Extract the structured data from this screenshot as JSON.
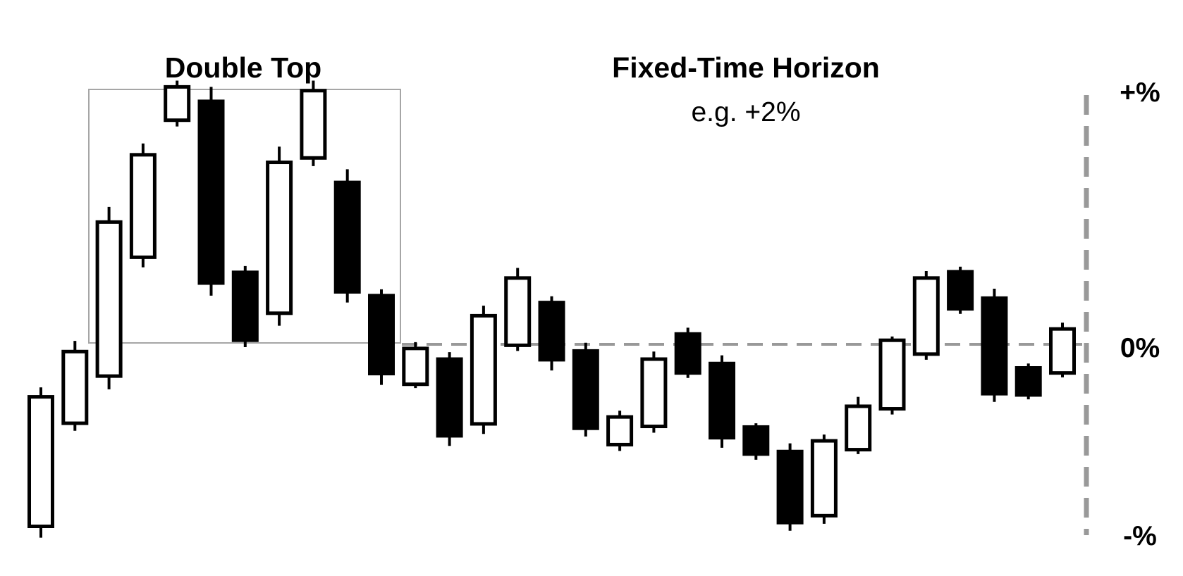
{
  "chart_data": {
    "type": "candlestick",
    "annotations": {
      "pattern_label": "Double Top",
      "horizon_title": "Fixed-Time Horizon",
      "horizon_subtitle": "e.g. +2%"
    },
    "y_axis_labels": {
      "top": "+%",
      "mid": "0%",
      "bottom": "-%"
    },
    "ylim": [
      -3.0,
      4.0
    ],
    "reference_line": 0,
    "colors": {
      "up_fill": "#ffffff",
      "down_fill": "#000000",
      "outline": "#000000",
      "guide": "#999999",
      "box": "#a6a6a6"
    },
    "pattern_range": {
      "first_candle": 2,
      "last_candle": 10
    },
    "candles": [
      {
        "open": -2.86,
        "close": -0.8,
        "high": -0.65,
        "low": -3.04
      },
      {
        "open": -1.22,
        "close": -0.08,
        "high": 0.09,
        "low": -1.34
      },
      {
        "open": -0.47,
        "close": 1.98,
        "high": 2.22,
        "low": -0.68
      },
      {
        "open": 1.42,
        "close": 3.05,
        "high": 3.23,
        "low": 1.26
      },
      {
        "open": 3.6,
        "close": 4.13,
        "high": 4.23,
        "low": 3.5
      },
      {
        "open": 3.9,
        "close": 1.01,
        "high": 4.13,
        "low": 0.81
      },
      {
        "open": 1.18,
        "close": 0.1,
        "high": 1.28,
        "low": -0.01
      },
      {
        "open": 0.53,
        "close": 2.93,
        "high": 3.18,
        "low": 0.33
      },
      {
        "open": 3.0,
        "close": 4.07,
        "high": 4.23,
        "low": 2.87
      },
      {
        "open": 2.61,
        "close": 0.87,
        "high": 2.82,
        "low": 0.7
      },
      {
        "open": 0.81,
        "close": -0.43,
        "high": 0.91,
        "low": -0.61
      },
      {
        "open": -0.6,
        "close": -0.03,
        "high": 0.07,
        "low": -0.66
      },
      {
        "open": -0.2,
        "close": -1.42,
        "high": -0.09,
        "low": -1.58
      },
      {
        "open": -1.23,
        "close": 0.49,
        "high": 0.65,
        "low": -1.39
      },
      {
        "open": 0.02,
        "close": 1.09,
        "high": 1.25,
        "low": -0.07
      },
      {
        "open": 0.7,
        "close": -0.21,
        "high": 0.8,
        "low": -0.38
      },
      {
        "open": -0.07,
        "close": -1.3,
        "high": 0.06,
        "low": -1.43
      },
      {
        "open": -1.56,
        "close": -1.12,
        "high": -1.02,
        "low": -1.66
      },
      {
        "open": -1.27,
        "close": -0.2,
        "high": -0.08,
        "low": -1.37
      },
      {
        "open": 0.2,
        "close": -0.42,
        "high": 0.3,
        "low": -0.5
      },
      {
        "open": -0.27,
        "close": -1.45,
        "high": -0.14,
        "low": -1.61
      },
      {
        "open": -1.28,
        "close": -1.71,
        "high": -1.22,
        "low": -1.8
      },
      {
        "open": -1.67,
        "close": -2.8,
        "high": -1.54,
        "low": -2.93
      },
      {
        "open": -2.69,
        "close": -1.5,
        "high": -1.4,
        "low": -2.82
      },
      {
        "open": -1.64,
        "close": -0.95,
        "high": -0.8,
        "low": -1.71
      },
      {
        "open": -0.99,
        "close": 0.1,
        "high": 0.16,
        "low": -1.08
      },
      {
        "open": -0.12,
        "close": 1.09,
        "high": 1.2,
        "low": -0.21
      },
      {
        "open": 1.19,
        "close": 0.6,
        "high": 1.27,
        "low": 0.52
      },
      {
        "open": 0.77,
        "close": -0.75,
        "high": 0.92,
        "low": -0.88
      },
      {
        "open": -0.34,
        "close": -0.77,
        "high": -0.27,
        "low": -0.84
      },
      {
        "open": -0.42,
        "close": 0.28,
        "high": 0.38,
        "low": -0.49
      }
    ]
  }
}
